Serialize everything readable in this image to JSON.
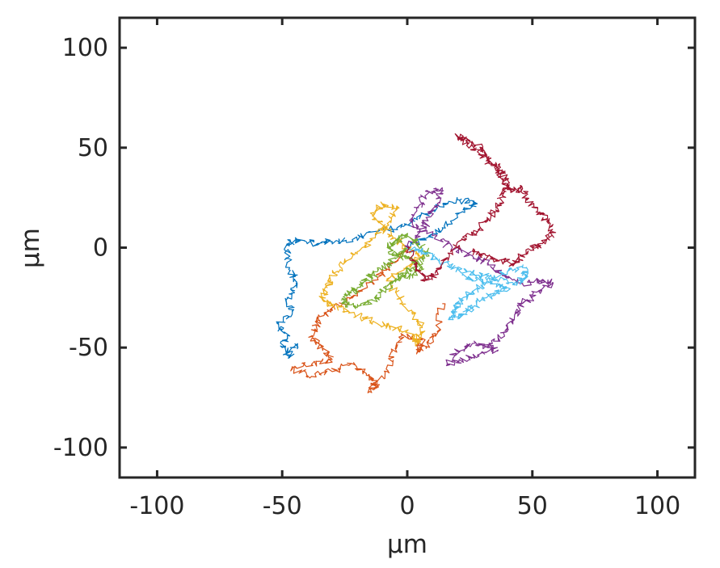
{
  "chart_data": {
    "type": "line",
    "title": "",
    "xlabel": "μm",
    "ylabel": "μm",
    "xlim": [
      -115,
      115
    ],
    "ylim": [
      -115,
      115
    ],
    "xticks": [
      -100,
      -50,
      0,
      50,
      100
    ],
    "yticks": [
      -100,
      -50,
      0,
      50,
      100
    ],
    "xtick_labels": [
      "-100",
      "-50",
      "0",
      "50",
      "100"
    ],
    "ytick_labels": [
      "100",
      "50",
      "0",
      "-50",
      "-100"
    ],
    "ytick_values": [
      100,
      50,
      0,
      -50,
      -100
    ],
    "grid": false,
    "legend": "none",
    "series": [
      {
        "color": "#0072BD",
        "points": [
          [
            0,
            0
          ],
          [
            8,
            5
          ],
          [
            14,
            10
          ],
          [
            22,
            18
          ],
          [
            28,
            22
          ],
          [
            20,
            24
          ],
          [
            12,
            20
          ],
          [
            4,
            14
          ],
          [
            -4,
            10
          ],
          [
            -12,
            8
          ],
          [
            -22,
            4
          ],
          [
            -30,
            3
          ],
          [
            -36,
            2
          ],
          [
            -44,
            4
          ],
          [
            -48,
            2
          ],
          [
            -47,
            -10
          ],
          [
            -44,
            -18
          ],
          [
            -48,
            -25
          ],
          [
            -46,
            -32
          ],
          [
            -52,
            -38
          ],
          [
            -48,
            -44
          ],
          [
            -50,
            -50
          ],
          [
            -47,
            -55
          ],
          [
            -45,
            -48
          ]
        ]
      },
      {
        "color": "#D95319",
        "points": [
          [
            0,
            0
          ],
          [
            -6,
            -8
          ],
          [
            -12,
            -15
          ],
          [
            -20,
            -22
          ],
          [
            -26,
            -28
          ],
          [
            -32,
            -32
          ],
          [
            -36,
            -38
          ],
          [
            -38,
            -44
          ],
          [
            -34,
            -50
          ],
          [
            -30,
            -56
          ],
          [
            -38,
            -58
          ],
          [
            -46,
            -60
          ],
          [
            -40,
            -64
          ],
          [
            -30,
            -62
          ],
          [
            -22,
            -58
          ],
          [
            -16,
            -64
          ],
          [
            -12,
            -68
          ],
          [
            -15,
            -72
          ],
          [
            -8,
            -62
          ],
          [
            -6,
            -52
          ],
          [
            -2,
            -44
          ],
          [
            6,
            -46
          ],
          [
            4,
            -52
          ],
          [
            8,
            -48
          ],
          [
            12,
            -42
          ],
          [
            14,
            -28
          ]
        ]
      },
      {
        "color": "#EDB120",
        "points": [
          [
            0,
            0
          ],
          [
            -6,
            6
          ],
          [
            -10,
            10
          ],
          [
            -14,
            16
          ],
          [
            -10,
            22
          ],
          [
            -4,
            20
          ],
          [
            -8,
            12
          ],
          [
            -14,
            4
          ],
          [
            -20,
            -2
          ],
          [
            -26,
            -8
          ],
          [
            -30,
            -14
          ],
          [
            -32,
            -20
          ],
          [
            -34,
            -26
          ],
          [
            -28,
            -30
          ],
          [
            -20,
            -34
          ],
          [
            -12,
            -38
          ],
          [
            -4,
            -40
          ],
          [
            2,
            -44
          ],
          [
            4,
            -48
          ],
          [
            6,
            -40
          ],
          [
            2,
            -32
          ],
          [
            -4,
            -24
          ],
          [
            -8,
            -16
          ],
          [
            0,
            -10
          ],
          [
            6,
            -4
          ],
          [
            0,
            0
          ]
        ]
      },
      {
        "color": "#7E2F8E",
        "points": [
          [
            0,
            0
          ],
          [
            6,
            8
          ],
          [
            8,
            14
          ],
          [
            12,
            22
          ],
          [
            14,
            30
          ],
          [
            8,
            28
          ],
          [
            4,
            20
          ],
          [
            2,
            12
          ],
          [
            10,
            6
          ],
          [
            18,
            0
          ],
          [
            26,
            -4
          ],
          [
            32,
            -8
          ],
          [
            38,
            -14
          ],
          [
            46,
            -18
          ],
          [
            54,
            -16
          ],
          [
            58,
            -18
          ],
          [
            52,
            -22
          ],
          [
            46,
            -28
          ],
          [
            42,
            -36
          ],
          [
            40,
            -42
          ],
          [
            34,
            -48
          ],
          [
            28,
            -54
          ],
          [
            22,
            -56
          ],
          [
            16,
            -58
          ],
          [
            20,
            -52
          ],
          [
            26,
            -48
          ],
          [
            32,
            -50
          ],
          [
            36,
            -52
          ]
        ]
      },
      {
        "color": "#77AC30",
        "points": [
          [
            0,
            0
          ],
          [
            -4,
            -4
          ],
          [
            -8,
            -8
          ],
          [
            -12,
            -12
          ],
          [
            -16,
            -16
          ],
          [
            -20,
            -20
          ],
          [
            -24,
            -24
          ],
          [
            -26,
            -28
          ],
          [
            -20,
            -30
          ],
          [
            -14,
            -26
          ],
          [
            -10,
            -22
          ],
          [
            -6,
            -18
          ],
          [
            -2,
            -14
          ],
          [
            2,
            -10
          ],
          [
            6,
            -6
          ],
          [
            8,
            -2
          ],
          [
            4,
            2
          ],
          [
            0,
            6
          ],
          [
            -4,
            4
          ],
          [
            -8,
            0
          ],
          [
            -4,
            -4
          ],
          [
            2,
            -6
          ],
          [
            6,
            -10
          ],
          [
            2,
            -14
          ],
          [
            -4,
            -16
          ]
        ]
      },
      {
        "color": "#4DBEEE",
        "points": [
          [
            0,
            0
          ],
          [
            6,
            -2
          ],
          [
            12,
            -6
          ],
          [
            18,
            -10
          ],
          [
            24,
            -12
          ],
          [
            30,
            -14
          ],
          [
            36,
            -16
          ],
          [
            44,
            -18
          ],
          [
            48,
            -14
          ],
          [
            46,
            -10
          ],
          [
            40,
            -12
          ],
          [
            34,
            -16
          ],
          [
            28,
            -20
          ],
          [
            24,
            -24
          ],
          [
            20,
            -28
          ],
          [
            18,
            -32
          ],
          [
            18,
            -36
          ],
          [
            22,
            -34
          ],
          [
            26,
            -30
          ],
          [
            30,
            -26
          ],
          [
            36,
            -22
          ],
          [
            40,
            -20
          ],
          [
            34,
            -18
          ],
          [
            28,
            -16
          ],
          [
            22,
            -14
          ]
        ]
      },
      {
        "color": "#A2142F",
        "points": [
          [
            0,
            0
          ],
          [
            4,
            -8
          ],
          [
            6,
            -16
          ],
          [
            10,
            -14
          ],
          [
            14,
            -8
          ],
          [
            18,
            -2
          ],
          [
            22,
            4
          ],
          [
            28,
            8
          ],
          [
            32,
            14
          ],
          [
            36,
            20
          ],
          [
            38,
            26
          ],
          [
            40,
            32
          ],
          [
            38,
            38
          ],
          [
            34,
            42
          ],
          [
            28,
            48
          ],
          [
            24,
            52
          ],
          [
            20,
            56
          ],
          [
            24,
            54
          ],
          [
            30,
            50
          ],
          [
            32,
            44
          ],
          [
            36,
            40
          ],
          [
            38,
            34
          ],
          [
            42,
            28
          ],
          [
            46,
            30
          ],
          [
            48,
            24
          ],
          [
            52,
            18
          ],
          [
            56,
            14
          ],
          [
            58,
            8
          ],
          [
            54,
            2
          ],
          [
            50,
            0
          ],
          [
            46,
            -4
          ],
          [
            42,
            -8
          ],
          [
            36,
            -6
          ],
          [
            30,
            -4
          ],
          [
            26,
            -2
          ]
        ]
      }
    ]
  }
}
